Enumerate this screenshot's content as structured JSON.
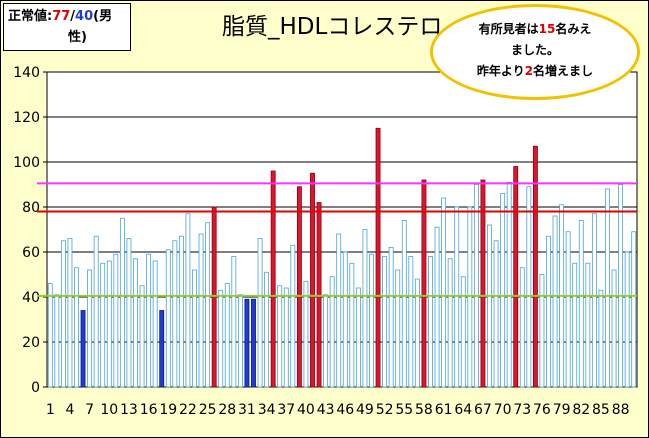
{
  "normal_value": {
    "label": "正常値:",
    "female_value": "77",
    "slash": "/",
    "male_value": "40",
    "suffix": "(男",
    "suffix2": "性)"
  },
  "callout": {
    "line1_pre": "有所見者は",
    "line1_num": "15",
    "line1_post": "名みえ",
    "line2": "ました。",
    "line3_pre": "昨年より",
    "line3_num": "2",
    "line3_post": "名増えまし"
  },
  "chart_data": {
    "type": "bar",
    "title": "脂質_HDLコレステロ",
    "xlabel": "",
    "ylabel": "",
    "ylim": [
      0,
      140
    ],
    "yticks": [
      0,
      20,
      40,
      60,
      80,
      100,
      120,
      140
    ],
    "xtick_labels": [
      "1",
      "4",
      "7",
      "10",
      "13",
      "16",
      "19",
      "22",
      "25",
      "28",
      "31",
      "34",
      "37",
      "40",
      "43",
      "46",
      "49",
      "52",
      "55",
      "58",
      "61",
      "64",
      "67",
      "70",
      "73",
      "76",
      "79",
      "82",
      "85",
      "88"
    ],
    "grid": true,
    "values": [
      46,
      41,
      65,
      66,
      53,
      34,
      52,
      67,
      55,
      56,
      59,
      75,
      66,
      57,
      45,
      59,
      56,
      34,
      61,
      65,
      67,
      77,
      52,
      68,
      73,
      80,
      43,
      46,
      58,
      41,
      39,
      39,
      66,
      51,
      96,
      45,
      44,
      63,
      89,
      47,
      95,
      82,
      41,
      49,
      68,
      60,
      55,
      44,
      70,
      59,
      115,
      58,
      62,
      52,
      74,
      58,
      48,
      92,
      58,
      71,
      84,
      57,
      80,
      49,
      80,
      90,
      92,
      72,
      65,
      86,
      91,
      98,
      53,
      89,
      107,
      50,
      67,
      76,
      81,
      69,
      55,
      74,
      55,
      77,
      43,
      88,
      52,
      90,
      60,
      69
    ],
    "categories_highlight": {
      "red": [
        26,
        35,
        39,
        41,
        42,
        51,
        58,
        67,
        72,
        75
      ],
      "blue": [
        6,
        18,
        31,
        32
      ]
    },
    "reference_lines": [
      {
        "value": 90.5,
        "color": "#ff33ff"
      },
      {
        "value": 78,
        "color": "#e00000"
      },
      {
        "value": 40.5,
        "color": "#99cc33"
      }
    ],
    "colors": {
      "normal_bar_fill": "#ffffff",
      "normal_bar_stroke": "#4aa3d6",
      "red_bar": "#e0142c",
      "blue_bar": "#1f3cd6",
      "plot_background": "#ffffff",
      "page_background": "#ffffcc"
    }
  }
}
